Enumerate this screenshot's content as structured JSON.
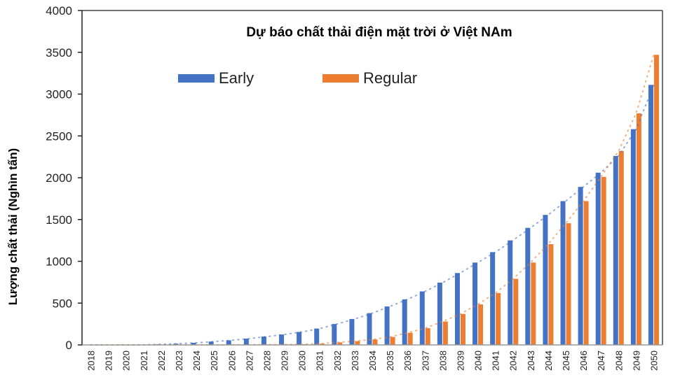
{
  "chart_data": {
    "type": "bar",
    "title": "Dự báo chất thải điện mặt trời ở Việt NAm",
    "xlabel": "",
    "ylabel": "Lượng chất thải (Nghìn tấn)",
    "ylim": [
      0,
      4000
    ],
    "yticks": [
      0,
      500,
      1000,
      1500,
      2000,
      2500,
      3000,
      3500,
      4000
    ],
    "grid": false,
    "legend_position": "top-inside",
    "trendlines": "dotted polynomial trendline per series",
    "categories": [
      "2018",
      "2019",
      "2020",
      "2021",
      "2022",
      "2023",
      "2024",
      "2025",
      "2026",
      "2027",
      "2028",
      "2029",
      "2030",
      "2031",
      "2032",
      "2033",
      "2034",
      "2035",
      "2036",
      "2037",
      "2038",
      "2039",
      "2040",
      "2041",
      "2042",
      "2043",
      "2044",
      "2045",
      "2046",
      "2047",
      "2048",
      "2049",
      "2050"
    ],
    "series": [
      {
        "name": "Early",
        "color": "#4472C4",
        "values": [
          1,
          1,
          1,
          1,
          8,
          15,
          25,
          40,
          55,
          75,
          100,
          125,
          155,
          195,
          250,
          310,
          380,
          460,
          545,
          640,
          745,
          860,
          985,
          1110,
          1250,
          1400,
          1555,
          1720,
          1890,
          2060,
          2260,
          2580,
          3110
        ]
      },
      {
        "name": "Regular",
        "color": "#ED7D31",
        "values": [
          0,
          0,
          0,
          0,
          0,
          0,
          1,
          1,
          2,
          3,
          4,
          5,
          8,
          15,
          30,
          45,
          65,
          95,
          145,
          200,
          280,
          370,
          485,
          620,
          790,
          985,
          1205,
          1455,
          1720,
          2010,
          2320,
          2770,
          3470
        ]
      }
    ]
  },
  "title": "Dự báo chất thải điện mặt trời ở Việt NAm",
  "ylabel": "Lượng chất thải (Nghìn tấn)",
  "legend": [
    {
      "label": "Early",
      "color": "#4472C4"
    },
    {
      "label": "Regular",
      "color": "#ED7D31"
    }
  ]
}
